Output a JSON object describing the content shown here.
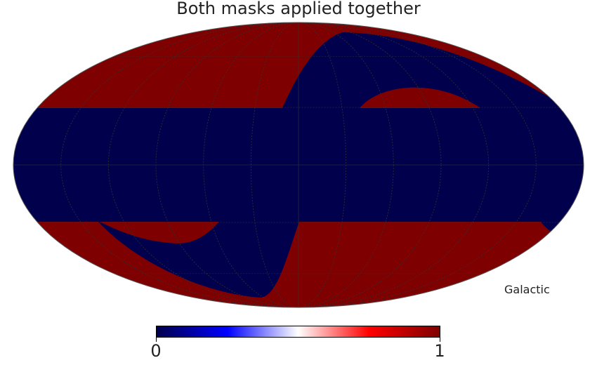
{
  "chart_data": {
    "type": "heatmap",
    "title": "Both masks applied together",
    "projection": "Mollweide",
    "coordinate_system": "Galactic",
    "colormap": "seismic",
    "colorbar": {
      "min": 0,
      "max": 1,
      "tick_labels": [
        "0",
        "1"
      ]
    },
    "graticule": true,
    "colors": {
      "zero": "#00004C",
      "one": "#7F0000"
    },
    "regions": [
      {
        "value": 1,
        "description": "northern band"
      },
      {
        "value": 1,
        "description": "southern band"
      },
      {
        "value": 0,
        "description": "equatorial band"
      },
      {
        "value": 0,
        "description": "rotated band"
      }
    ]
  }
}
